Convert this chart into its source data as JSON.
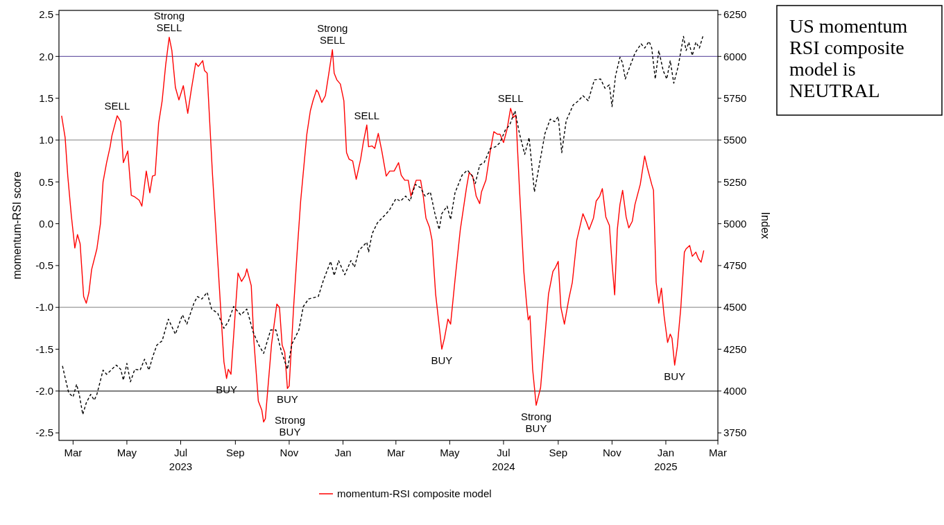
{
  "chart_data": {
    "type": "line",
    "ylabel": "momentum-RSI score",
    "y2label": "Index",
    "legend": "bottom",
    "xlim": [
      "2023-02-13",
      "2025-03-01"
    ],
    "xticks": [
      {
        "value": "2023-03-01",
        "label": "Mar"
      },
      {
        "value": "2023-05-01",
        "label": "May"
      },
      {
        "value": "2023-07-01",
        "label": "Jul\n2023"
      },
      {
        "value": "2023-09-01",
        "label": "Sep"
      },
      {
        "value": "2023-11-01",
        "label": "Nov"
      },
      {
        "value": "2024-01-01",
        "label": "Jan"
      },
      {
        "value": "2024-03-01",
        "label": "Mar"
      },
      {
        "value": "2024-05-01",
        "label": "May"
      },
      {
        "value": "2024-07-01",
        "label": "Jul\n2024"
      },
      {
        "value": "2024-09-01",
        "label": "Sep"
      },
      {
        "value": "2024-11-01",
        "label": "Nov"
      },
      {
        "value": "2025-01-01",
        "label": "Jan\n2025"
      },
      {
        "value": "2025-03-01",
        "label": "Mar"
      }
    ],
    "ylim": [
      -2.59,
      2.55
    ],
    "yticks": [
      {
        "value": -2.5,
        "label": "-2.5"
      },
      {
        "value": -2,
        "label": "-2.0"
      },
      {
        "value": -1.5,
        "label": "-1.5"
      },
      {
        "value": -1,
        "label": "-1.0"
      },
      {
        "value": -0.5,
        "label": "-0.5"
      },
      {
        "value": 0,
        "label": "0.0"
      },
      {
        "value": 0.5,
        "label": "0.5"
      },
      {
        "value": 1,
        "label": "1.0"
      },
      {
        "value": 1.5,
        "label": "1.5"
      },
      {
        "value": 2,
        "label": "2.0"
      },
      {
        "value": 2.5,
        "label": "2.5"
      }
    ],
    "y2lim": [
      3705,
      6275
    ],
    "y2ticks": [
      3750,
      4000,
      4250,
      4500,
      4750,
      5000,
      5250,
      5500,
      5750,
      6000,
      6250
    ],
    "ref_lines": [
      {
        "axis": "y",
        "value": 2,
        "color": "#7060a8"
      },
      {
        "axis": "y",
        "value": 1,
        "color": "#999999"
      },
      {
        "axis": "y",
        "value": -1,
        "color": "#999999"
      },
      {
        "axis": "y",
        "value": -2,
        "color": "#333333"
      }
    ],
    "series": [
      {
        "name": "momentum-RSI composite model",
        "color": "#ff0000",
        "line_style": "solid",
        "x": [
          "2023-02-16",
          "2023-02-20",
          "2023-02-23",
          "2023-02-27",
          "2023-03-03",
          "2023-03-06",
          "2023-03-09",
          "2023-03-13",
          "2023-03-16",
          "2023-03-19",
          "2023-03-22",
          "2023-03-28",
          "2023-04-01",
          "2023-04-04",
          "2023-04-08",
          "2023-04-12",
          "2023-04-14",
          "2023-04-20",
          "2023-04-24",
          "2023-04-27",
          "2023-05-02",
          "2023-05-06",
          "2023-05-10",
          "2023-05-15",
          "2023-05-18",
          "2023-05-23",
          "2023-05-27",
          "2023-05-30",
          "2023-06-02",
          "2023-06-06",
          "2023-06-10",
          "2023-06-14",
          "2023-06-18",
          "2023-06-21",
          "2023-06-25",
          "2023-06-29",
          "2023-07-04",
          "2023-07-09",
          "2023-07-13",
          "2023-07-18",
          "2023-07-21",
          "2023-07-26",
          "2023-07-28",
          "2023-07-31",
          "2023-08-06",
          "2023-08-12",
          "2023-08-19",
          "2023-08-22",
          "2023-08-24",
          "2023-08-27",
          "2023-09-01",
          "2023-09-04",
          "2023-09-08",
          "2023-09-12",
          "2023-09-14",
          "2023-09-19",
          "2023-09-22",
          "2023-09-27",
          "2023-10-01",
          "2023-10-03",
          "2023-10-05",
          "2023-10-12",
          "2023-10-18",
          "2023-10-21",
          "2023-10-24",
          "2023-10-27",
          "2023-10-30",
          "2023-11-01",
          "2023-11-06",
          "2023-11-10",
          "2023-11-14",
          "2023-11-21",
          "2023-11-25",
          "2023-11-28",
          "2023-12-02",
          "2023-12-04",
          "2023-12-08",
          "2023-12-12",
          "2023-12-16",
          "2023-12-20",
          "2023-12-22",
          "2023-12-25",
          "2023-12-29",
          "2024-01-02",
          "2024-01-05",
          "2024-01-08",
          "2024-01-12",
          "2024-01-16",
          "2024-01-21",
          "2024-01-24",
          "2024-01-28",
          "2024-01-30",
          "2024-02-03",
          "2024-02-06",
          "2024-02-10",
          "2024-02-14",
          "2024-02-19",
          "2024-02-23",
          "2024-02-28",
          "2024-03-04",
          "2024-03-07",
          "2024-03-11",
          "2024-03-15",
          "2024-03-18",
          "2024-03-24",
          "2024-03-29",
          "2024-04-01",
          "2024-04-04",
          "2024-04-08",
          "2024-04-11",
          "2024-04-15",
          "2024-04-22",
          "2024-04-25",
          "2024-04-29",
          "2024-05-02",
          "2024-05-07",
          "2024-05-13",
          "2024-05-20",
          "2024-05-23",
          "2024-05-27",
          "2024-05-31",
          "2024-06-04",
          "2024-06-06",
          "2024-06-11",
          "2024-06-16",
          "2024-06-20",
          "2024-06-24",
          "2024-06-27",
          "2024-07-01",
          "2024-07-05",
          "2024-07-09",
          "2024-07-12",
          "2024-07-15",
          "2024-07-19",
          "2024-07-24",
          "2024-07-27",
          "2024-07-29",
          "2024-07-31",
          "2024-08-03",
          "2024-08-07",
          "2024-08-12",
          "2024-08-17",
          "2024-08-21",
          "2024-08-26",
          "2024-08-29",
          "2024-09-01",
          "2024-09-04",
          "2024-09-08",
          "2024-09-13",
          "2024-09-17",
          "2024-09-22",
          "2024-09-29",
          "2024-10-03",
          "2024-10-06",
          "2024-10-11",
          "2024-10-14",
          "2024-10-18",
          "2024-10-21",
          "2024-10-25",
          "2024-10-29",
          "2024-11-01",
          "2024-11-04",
          "2024-11-07",
          "2024-11-10",
          "2024-11-13",
          "2024-11-17",
          "2024-11-20",
          "2024-11-24",
          "2024-11-27",
          "2024-12-03",
          "2024-12-08",
          "2024-12-11",
          "2024-12-16",
          "2024-12-18",
          "2024-12-21",
          "2024-12-24",
          "2024-12-27",
          "2024-12-30",
          "2025-01-03",
          "2025-01-06",
          "2025-01-08",
          "2025-01-11",
          "2025-01-14",
          "2025-01-18",
          "2025-01-22",
          "2025-01-24",
          "2025-01-28",
          "2025-01-31",
          "2025-02-04",
          "2025-02-07",
          "2025-02-10",
          "2025-02-13"
        ],
        "values": [
          1.29,
          1.03,
          0.57,
          0.1,
          -0.29,
          -0.13,
          -0.24,
          -0.87,
          -0.95,
          -0.82,
          -0.55,
          -0.3,
          0.0,
          0.5,
          0.73,
          0.92,
          1.05,
          1.29,
          1.22,
          0.73,
          0.87,
          0.34,
          0.32,
          0.28,
          0.21,
          0.63,
          0.37,
          0.57,
          0.58,
          1.2,
          1.47,
          1.9,
          2.23,
          2.07,
          1.63,
          1.48,
          1.65,
          1.32,
          1.6,
          1.92,
          1.88,
          1.95,
          1.83,
          1.8,
          0.6,
          -0.44,
          -1.65,
          -1.85,
          -1.74,
          -1.8,
          -1.04,
          -0.59,
          -0.69,
          -0.62,
          -0.54,
          -0.74,
          -1.4,
          -2.12,
          -2.23,
          -2.37,
          -2.33,
          -1.44,
          -0.96,
          -1.0,
          -1.45,
          -1.54,
          -1.97,
          -1.94,
          -1.0,
          -0.34,
          0.27,
          1.07,
          1.35,
          1.47,
          1.6,
          1.57,
          1.45,
          1.53,
          1.8,
          2.08,
          1.8,
          1.72,
          1.67,
          1.47,
          0.85,
          0.77,
          0.75,
          0.53,
          0.77,
          0.97,
          1.18,
          0.92,
          0.93,
          0.9,
          1.08,
          0.87,
          0.57,
          0.63,
          0.63,
          0.73,
          0.58,
          0.52,
          0.52,
          0.33,
          0.52,
          0.52,
          0.33,
          0.07,
          -0.04,
          -0.2,
          -0.84,
          -1.5,
          -1.37,
          -1.14,
          -1.2,
          -0.67,
          -0.07,
          0.43,
          0.61,
          0.57,
          0.33,
          0.24,
          0.38,
          0.52,
          0.87,
          1.1,
          1.07,
          1.07,
          0.97,
          1.13,
          1.38,
          1.27,
          1.3,
          0.43,
          -0.57,
          -0.94,
          -1.15,
          -1.1,
          -1.74,
          -2.17,
          -1.96,
          -1.34,
          -0.84,
          -0.57,
          -0.52,
          -0.45,
          -1.0,
          -1.2,
          -0.9,
          -0.7,
          -0.2,
          0.12,
          0.02,
          -0.07,
          0.07,
          0.27,
          0.33,
          0.42,
          0.08,
          -0.02,
          -0.47,
          -0.85,
          -0.07,
          0.23,
          0.4,
          0.08,
          -0.05,
          0.03,
          0.23,
          0.47,
          0.81,
          0.67,
          0.47,
          0.4,
          -0.7,
          -0.95,
          -0.77,
          -1.1,
          -1.42,
          -1.32,
          -1.37,
          -1.69,
          -1.47,
          -1.0,
          -0.34,
          -0.3,
          -0.26,
          -0.39,
          -0.34,
          -0.42,
          -0.46,
          -0.32
        ]
      },
      {
        "color": "#000000",
        "line_style": "dashed",
        "axis": "y2",
        "x": [
          "2023-02-17",
          "2023-02-20",
          "2023-02-24",
          "2023-03-01",
          "2023-03-05",
          "2023-03-08",
          "2023-03-12",
          "2023-03-16",
          "2023-03-21",
          "2023-03-25",
          "2023-03-28",
          "2023-04-04",
          "2023-04-08",
          "2023-04-13",
          "2023-04-19",
          "2023-04-24",
          "2023-04-27",
          "2023-05-01",
          "2023-05-05",
          "2023-05-10",
          "2023-05-16",
          "2023-05-21",
          "2023-05-26",
          "2023-05-30",
          "2023-06-04",
          "2023-06-10",
          "2023-06-17",
          "2023-06-25",
          "2023-07-03",
          "2023-07-08",
          "2023-07-16",
          "2023-07-20",
          "2023-07-25",
          "2023-07-31",
          "2023-08-05",
          "2023-08-12",
          "2023-08-19",
          "2023-08-24",
          "2023-08-30",
          "2023-09-07",
          "2023-09-14",
          "2023-09-21",
          "2023-09-27",
          "2023-10-03",
          "2023-10-11",
          "2023-10-17",
          "2023-10-23",
          "2023-10-30",
          "2023-11-04",
          "2023-11-12",
          "2023-11-17",
          "2023-11-23",
          "2023-12-04",
          "2023-12-10",
          "2023-12-18",
          "2023-12-22",
          "2023-12-27",
          "2024-01-03",
          "2024-01-10",
          "2024-01-14",
          "2024-01-19",
          "2024-01-28",
          "2024-01-30",
          "2024-02-03",
          "2024-02-09",
          "2024-02-19",
          "2024-02-23",
          "2024-03-01",
          "2024-03-06",
          "2024-03-12",
          "2024-03-17",
          "2024-03-23",
          "2024-03-29",
          "2024-04-03",
          "2024-04-09",
          "2024-04-14",
          "2024-04-19",
          "2024-04-22",
          "2024-04-28",
          "2024-05-02",
          "2024-05-07",
          "2024-05-15",
          "2024-05-21",
          "2024-05-26",
          "2024-05-30",
          "2024-06-04",
          "2024-06-09",
          "2024-06-16",
          "2024-06-22",
          "2024-06-27",
          "2024-07-03",
          "2024-07-08",
          "2024-07-14",
          "2024-07-19",
          "2024-07-25",
          "2024-07-30",
          "2024-08-05",
          "2024-08-10",
          "2024-08-17",
          "2024-08-23",
          "2024-08-28",
          "2024-09-01",
          "2024-09-05",
          "2024-09-10",
          "2024-09-18",
          "2024-09-24",
          "2024-09-29",
          "2024-10-05",
          "2024-10-12",
          "2024-10-19",
          "2024-10-24",
          "2024-10-29",
          "2024-11-01",
          "2024-11-05",
          "2024-11-10",
          "2024-11-13",
          "2024-11-16",
          "2024-11-22",
          "2024-11-27",
          "2024-12-04",
          "2024-12-08",
          "2024-12-13",
          "2024-12-16",
          "2024-12-20",
          "2024-12-24",
          "2024-12-29",
          "2025-01-02",
          "2025-01-06",
          "2025-01-10",
          "2025-01-15",
          "2025-01-21",
          "2025-01-24",
          "2025-01-27",
          "2025-01-31",
          "2025-02-04",
          "2025-02-08",
          "2025-02-12"
        ],
        "values": [
          4150,
          4080,
          3990,
          3965,
          4040,
          3980,
          3860,
          3930,
          3980,
          3945,
          3980,
          4125,
          4100,
          4125,
          4155,
          4130,
          4065,
          4165,
          4055,
          4130,
          4125,
          4190,
          4125,
          4200,
          4275,
          4300,
          4430,
          4340,
          4455,
          4400,
          4525,
          4565,
          4550,
          4590,
          4490,
          4465,
          4375,
          4415,
          4505,
          4455,
          4490,
          4355,
          4280,
          4225,
          4365,
          4365,
          4240,
          4130,
          4280,
          4365,
          4505,
          4550,
          4565,
          4665,
          4775,
          4690,
          4780,
          4695,
          4780,
          4740,
          4840,
          4890,
          4830,
          4940,
          5005,
          5060,
          5085,
          5150,
          5135,
          5165,
          5135,
          5235,
          5215,
          5165,
          5190,
          5065,
          4965,
          5060,
          5105,
          5025,
          5185,
          5290,
          5320,
          5290,
          5240,
          5350,
          5365,
          5450,
          5460,
          5485,
          5560,
          5590,
          5675,
          5540,
          5415,
          5515,
          5190,
          5335,
          5540,
          5625,
          5610,
          5640,
          5425,
          5615,
          5710,
          5735,
          5765,
          5735,
          5860,
          5865,
          5810,
          5830,
          5700,
          5885,
          5995,
          5960,
          5865,
          5950,
          6020,
          6075,
          6050,
          6090,
          6050,
          5865,
          6035,
          5915,
          5865,
          5975,
          5840,
          5940,
          6120,
          6035,
          6085,
          6005,
          6085,
          6050,
          6120
        ]
      }
    ],
    "annotations": [
      {
        "text": "SELL",
        "x": "2023-04-20",
        "y": 1.29
      },
      {
        "text": "Strong SELL",
        "x": "2023-06-18",
        "y": 2.23
      },
      {
        "text": "BUY",
        "x": "2023-08-22",
        "y": -1.85
      },
      {
        "text": "Strong BUY",
        "x": "2023-10-03",
        "y": -2.37
      },
      {
        "text": "BUY",
        "x": "2023-10-30",
        "y": -1.97
      },
      {
        "text": "Strong SELL",
        "x": "2023-12-20",
        "y": 2.08
      },
      {
        "text": "SELL",
        "x": "2024-01-28",
        "y": 1.18
      },
      {
        "text": "BUY",
        "x": "2024-04-22",
        "y": -1.5
      },
      {
        "text": "SELL",
        "x": "2024-07-09",
        "y": 1.38
      },
      {
        "text": "Strong BUY",
        "x": "2024-08-07",
        "y": -2.17
      },
      {
        "text": "BUY",
        "x": "2025-01-11",
        "y": -1.69
      },
      "US momentum RSI composite model is NEUTRAL"
    ]
  }
}
